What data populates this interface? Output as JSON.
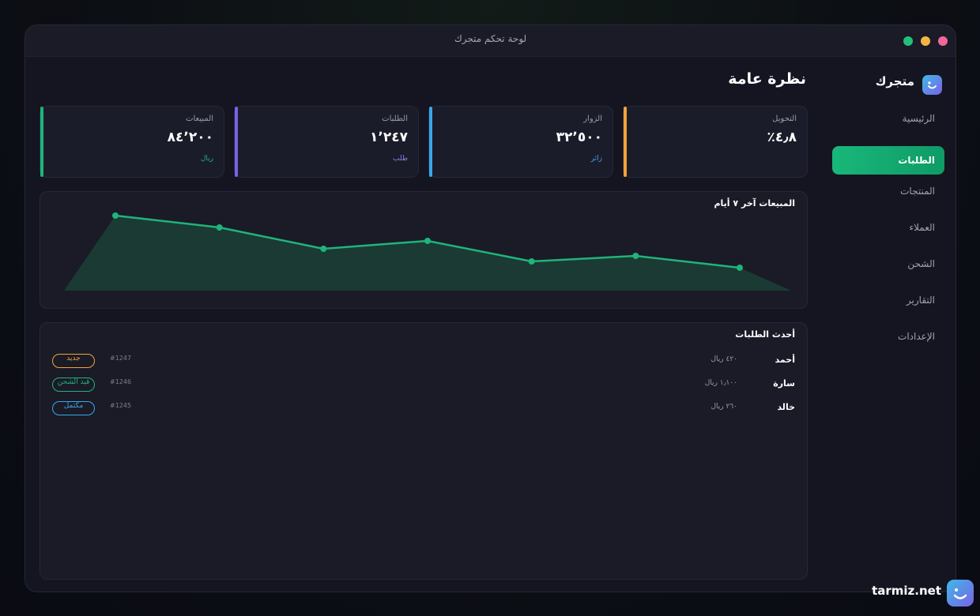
{
  "window": {
    "title": "لوحة تحكم متجرك"
  },
  "brand": {
    "name": "متجرك",
    "icon": "smile-logo-icon"
  },
  "sidebar": {
    "items": [
      {
        "label": "الرئيسية",
        "active": false
      },
      {
        "label": "الطلبات",
        "active": true
      },
      {
        "label": "المنتجات",
        "active": false
      },
      {
        "label": "العملاء",
        "active": false
      },
      {
        "label": "الشحن",
        "active": false
      },
      {
        "label": "التقارير",
        "active": false
      },
      {
        "label": "الإعدادات",
        "active": false
      }
    ]
  },
  "main": {
    "title": "نظرة عامة",
    "stats": [
      {
        "label": "التحويل",
        "value": "٤٫٨٪",
        "sub": "",
        "color": "#f2a33a"
      },
      {
        "label": "الزوار",
        "value": "٣٢٬٥٠٠",
        "sub": "زائر",
        "color": "#3aa6ee"
      },
      {
        "label": "الطلبات",
        "value": "١٬٢٤٧",
        "sub": "طلب",
        "color": "#7a62e6"
      },
      {
        "label": "المبيعات",
        "value": "٨٤٬٢٠٠",
        "sub": "ريال",
        "color": "#1fb47a"
      }
    ],
    "chart_title": "المبيعات آخر ٧ أيام",
    "orders_title": "أحدث الطلبات",
    "orders": [
      {
        "customer": "أحمد",
        "amount": "٤٢٠ ريال",
        "id": "#1247",
        "status": "جديد",
        "status_color": "#f2a33a"
      },
      {
        "customer": "سارة",
        "amount": "١٫١٠٠ ريال",
        "id": "#1246",
        "status": "قيد الشحن",
        "status_color": "#1fb47a"
      },
      {
        "customer": "خالد",
        "amount": "٢٦٠ ريال",
        "id": "#1245",
        "status": "مكتمل",
        "status_color": "#3aa6ee"
      }
    ]
  },
  "chart_data": {
    "type": "area",
    "title": "المبيعات آخر ٧ أيام",
    "x": [
      1,
      2,
      3,
      4,
      5,
      6,
      7
    ],
    "series": [
      {
        "values": [
          95,
          80,
          53,
          63,
          37,
          44,
          29
        ]
      }
    ],
    "ylim": [
      0,
      100
    ],
    "color": "#1fb47a",
    "fill": "#1b3a34",
    "grid": false
  },
  "footer": {
    "brand": "tarmiz.net"
  }
}
